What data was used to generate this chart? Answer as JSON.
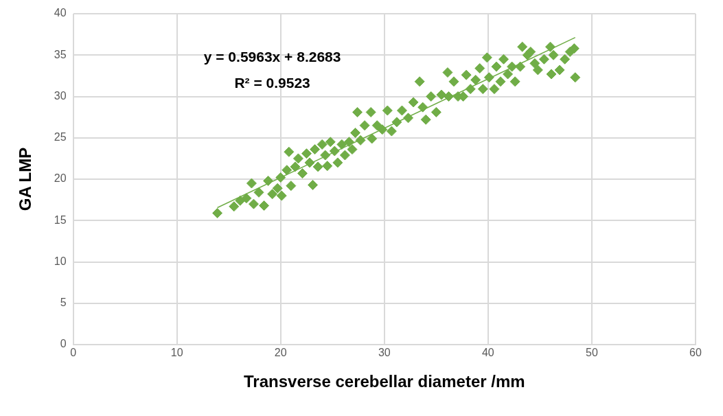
{
  "chart_data": {
    "type": "scatter",
    "xlabel": "Transverse cerebellar diameter /mm",
    "ylabel": "GA LMP",
    "xlim": [
      0,
      60
    ],
    "xticks": [
      0,
      10,
      20,
      30,
      40,
      50,
      60
    ],
    "ylim": [
      0,
      40
    ],
    "yticks": [
      0,
      5,
      10,
      15,
      20,
      25,
      30,
      35,
      40
    ],
    "grid": true,
    "legend": false,
    "marker": "diamond",
    "annotations": [
      "y = 0.5963x + 8.2683",
      "R² = 0.9523"
    ],
    "series": [
      {
        "color": "#70ad47",
        "x": [
          13.9,
          15.5,
          16.1,
          16.7,
          17.2,
          17.4,
          17.9,
          18.4,
          18.8,
          19.2,
          19.7,
          20.0,
          20.1,
          20.6,
          20.8,
          21.0,
          21.4,
          21.7,
          22.1,
          22.5,
          22.8,
          23.1,
          23.3,
          23.6,
          24.0,
          24.3,
          24.5,
          24.8,
          25.2,
          25.5,
          25.9,
          26.2,
          26.6,
          26.9,
          27.2,
          27.4,
          27.7,
          28.1,
          28.7,
          28.8,
          29.3,
          29.8,
          30.3,
          30.7,
          31.2,
          31.7,
          32.3,
          32.8,
          33.4,
          33.7,
          34.0,
          34.5,
          35.0,
          35.5,
          36.1,
          36.2,
          36.7,
          37.1,
          37.6,
          37.9,
          38.3,
          38.8,
          39.2,
          39.5,
          39.9,
          40.1,
          40.6,
          40.8,
          41.2,
          41.5,
          41.9,
          42.3,
          42.6,
          43.1,
          43.3,
          43.8,
          44.1,
          44.5,
          44.8,
          45.4,
          46.0,
          46.1,
          46.3,
          46.9,
          47.4,
          47.9,
          48.3,
          48.4
        ],
        "values": [
          15.9,
          16.7,
          17.4,
          17.7,
          19.5,
          17.0,
          18.4,
          16.8,
          19.8,
          18.2,
          18.9,
          20.2,
          18.0,
          21.1,
          23.3,
          19.2,
          21.5,
          22.5,
          20.7,
          23.1,
          22.0,
          19.3,
          23.6,
          21.5,
          24.2,
          22.9,
          21.6,
          24.5,
          23.4,
          22.0,
          24.2,
          22.9,
          24.5,
          23.6,
          25.6,
          28.1,
          24.7,
          26.5,
          28.1,
          24.9,
          26.5,
          26.0,
          28.3,
          25.8,
          26.9,
          28.3,
          27.4,
          29.3,
          31.8,
          28.7,
          27.2,
          30.0,
          28.1,
          30.2,
          32.9,
          30.0,
          31.8,
          30.0,
          30.0,
          32.6,
          30.9,
          32.0,
          33.4,
          30.9,
          34.7,
          32.3,
          30.9,
          33.6,
          31.8,
          34.5,
          32.7,
          33.6,
          31.8,
          33.6,
          36.0,
          35.0,
          35.4,
          34.0,
          33.2,
          34.5,
          36.0,
          32.7,
          35.0,
          33.2,
          34.5,
          35.4,
          35.8,
          32.3
        ]
      },
      {
        "type": "line",
        "color": "#70ad47",
        "marker": "none",
        "x": [
          13.9,
          48.4
        ],
        "values": [
          16.56,
          37.13
        ]
      }
    ]
  }
}
